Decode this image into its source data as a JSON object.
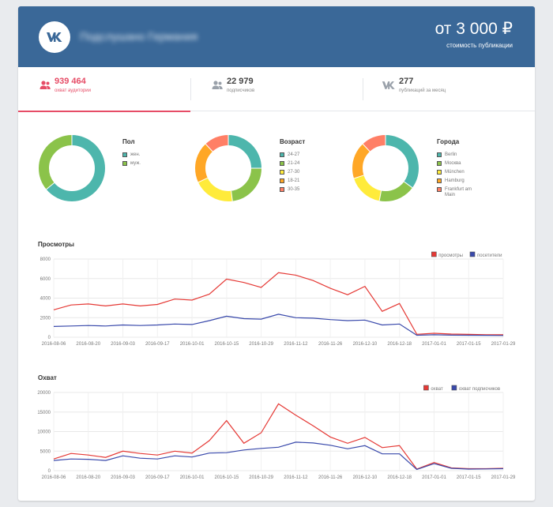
{
  "header": {
    "group_name": "Подслушано Германия",
    "price": "от 3 000 ₽",
    "price_caption": "стоимость публикации"
  },
  "stats": [
    {
      "value": "939 464",
      "label": "охват аудитории",
      "icon": "user-group-icon",
      "active": true
    },
    {
      "value": "22 979",
      "label": "подписчиков",
      "icon": "subscribers-icon",
      "active": false
    },
    {
      "value": "277",
      "label": "публикаций за месяц",
      "icon": "vk-logo-icon",
      "active": false
    }
  ],
  "colors": {
    "header": "#3a6898",
    "accent": "#e64c66",
    "teal": "#4db6ac",
    "green": "#8bc34a",
    "yellow": "#ffeb3b",
    "orange": "#ffa726",
    "salmon": "#ff7f66",
    "series_red": "#e53935",
    "series_blue": "#3949ab"
  },
  "donuts": [
    {
      "title": "Пол",
      "items": [
        {
          "label": "жен.",
          "value": 64,
          "color": "#4db6ac"
        },
        {
          "label": "муж.",
          "value": 36,
          "color": "#8bc34a"
        }
      ]
    },
    {
      "title": "Возраст",
      "items": [
        {
          "label": "24-27",
          "value": 25,
          "color": "#4db6ac"
        },
        {
          "label": "21-24",
          "value": 23,
          "color": "#8bc34a"
        },
        {
          "label": "27-30",
          "value": 20,
          "color": "#ffeb3b"
        },
        {
          "label": "18-21",
          "value": 20,
          "color": "#ffa726"
        },
        {
          "label": "30-35",
          "value": 12,
          "color": "#ff7f66"
        }
      ]
    },
    {
      "title": "Города",
      "items": [
        {
          "label": "Berlin",
          "value": 35,
          "color": "#4db6ac"
        },
        {
          "label": "Москва",
          "value": 18,
          "color": "#8bc34a"
        },
        {
          "label": "München",
          "value": 17,
          "color": "#ffeb3b"
        },
        {
          "label": "Hamburg",
          "value": 18,
          "color": "#ffa726"
        },
        {
          "label": "Frankfurt am Main",
          "value": 12,
          "color": "#ff7f66"
        }
      ]
    }
  ],
  "chart_data": [
    {
      "type": "line",
      "title": "Просмотры",
      "x_labels": [
        "2016-08-06",
        "2016-08-20",
        "2016-09-03",
        "2016-09-17",
        "2016-10-01",
        "2016-10-15",
        "2016-10-29",
        "2016-11-12",
        "2016-11-26",
        "2016-12-10",
        "2016-12-18",
        "2017-01-01",
        "2017-01-15",
        "2017-01-29"
      ],
      "ylim": [
        0,
        8000
      ],
      "yticks": [
        "0",
        "2000",
        "4000",
        "6000",
        "8000"
      ],
      "legend_position": "top-right",
      "series": [
        {
          "name": "просмотры",
          "color": "#e53935",
          "values": [
            2800,
            3300,
            3400,
            3200,
            3400,
            3200,
            3350,
            3900,
            3800,
            4400,
            5950,
            5600,
            5100,
            6600,
            6350,
            5800,
            5000,
            4350,
            5200,
            2650,
            3450,
            300,
            400,
            320,
            290,
            260,
            250
          ]
        },
        {
          "name": "посетители",
          "color": "#3949ab",
          "values": [
            1100,
            1150,
            1200,
            1150,
            1250,
            1200,
            1250,
            1350,
            1300,
            1700,
            2150,
            1900,
            1850,
            2350,
            2000,
            1950,
            1800,
            1700,
            1750,
            1250,
            1350,
            200,
            250,
            210,
            200,
            190,
            180
          ]
        }
      ]
    },
    {
      "type": "line",
      "title": "Охват",
      "x_labels": [
        "2016-08-06",
        "2016-08-20",
        "2016-09-03",
        "2016-09-17",
        "2016-10-01",
        "2016-10-15",
        "2016-10-29",
        "2016-11-12",
        "2016-11-26",
        "2016-12-10",
        "2016-12-18",
        "2017-01-01",
        "2017-01-15",
        "2017-01-29"
      ],
      "ylim": [
        0,
        20000
      ],
      "yticks": [
        "0",
        "5000",
        "10000",
        "15000",
        "20000"
      ],
      "legend_position": "top-right",
      "series": [
        {
          "name": "охват",
          "color": "#e53935",
          "values": [
            3000,
            4400,
            4000,
            3400,
            5000,
            4400,
            4000,
            5000,
            4500,
            7700,
            12800,
            7000,
            9700,
            17100,
            14200,
            11500,
            8600,
            7000,
            8500,
            5900,
            6400,
            400,
            2100,
            700,
            500,
            500,
            600
          ]
        },
        {
          "name": "охват подписчиков",
          "color": "#3949ab",
          "values": [
            2600,
            3000,
            2900,
            2600,
            3800,
            3200,
            3000,
            3800,
            3500,
            4500,
            4600,
            5300,
            5700,
            6000,
            7300,
            7100,
            6500,
            5600,
            6400,
            4300,
            4300,
            300,
            1800,
            600,
            400,
            450,
            500
          ]
        }
      ]
    }
  ]
}
